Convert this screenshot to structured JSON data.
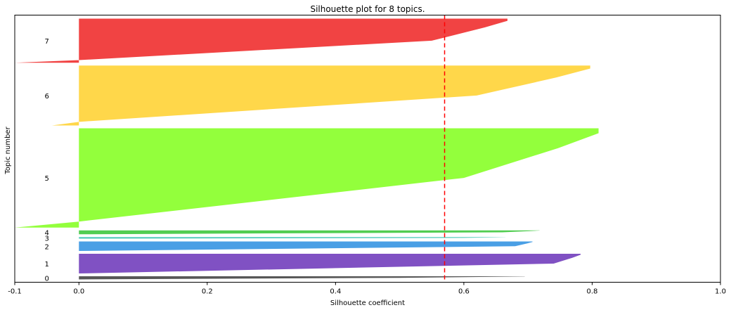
{
  "chart_data": {
    "type": "area",
    "title": "Silhouette plot for 8 topics.",
    "xlabel": "Silhouette coefficient",
    "ylabel": "Topic number",
    "xlim": [
      -0.1,
      1.0
    ],
    "xticks": [
      "-0.1",
      "0.0",
      "0.2",
      "0.4",
      "0.6",
      "0.8",
      "1.0"
    ],
    "average_silhouette": 0.57,
    "average_line_color": "#ff0000",
    "grid": false,
    "clusters": [
      {
        "label": "0",
        "color": "#3a3a3a",
        "max": 0.695,
        "mid": 0.5,
        "min": 0.0,
        "size": 4
      },
      {
        "label": "1",
        "color": "#6a33b8",
        "max": 0.782,
        "mid": 0.74,
        "min": 0.0,
        "size": 25
      },
      {
        "label": "2",
        "color": "#2a8ee0",
        "max": 0.707,
        "mid": 0.68,
        "min": 0.0,
        "size": 12
      },
      {
        "label": "3",
        "color": "#33c2b0",
        "max": 0.665,
        "mid": 0.6,
        "min": 0.0,
        "size": 2
      },
      {
        "label": "4",
        "color": "#33c433",
        "max": 0.718,
        "mid": 0.66,
        "min": 0.0,
        "size": 5
      },
      {
        "label": "5",
        "color": "#80ff1a",
        "max": 0.81,
        "mid": 0.6,
        "min": -0.1,
        "size": 126
      },
      {
        "label": "6",
        "color": "#ffd02a",
        "max": 0.797,
        "mid": 0.62,
        "min": -0.042,
        "size": 76
      },
      {
        "label": "7",
        "color": "#ee2222",
        "max": 0.668,
        "mid": 0.55,
        "min": -0.1,
        "size": 56
      }
    ]
  }
}
